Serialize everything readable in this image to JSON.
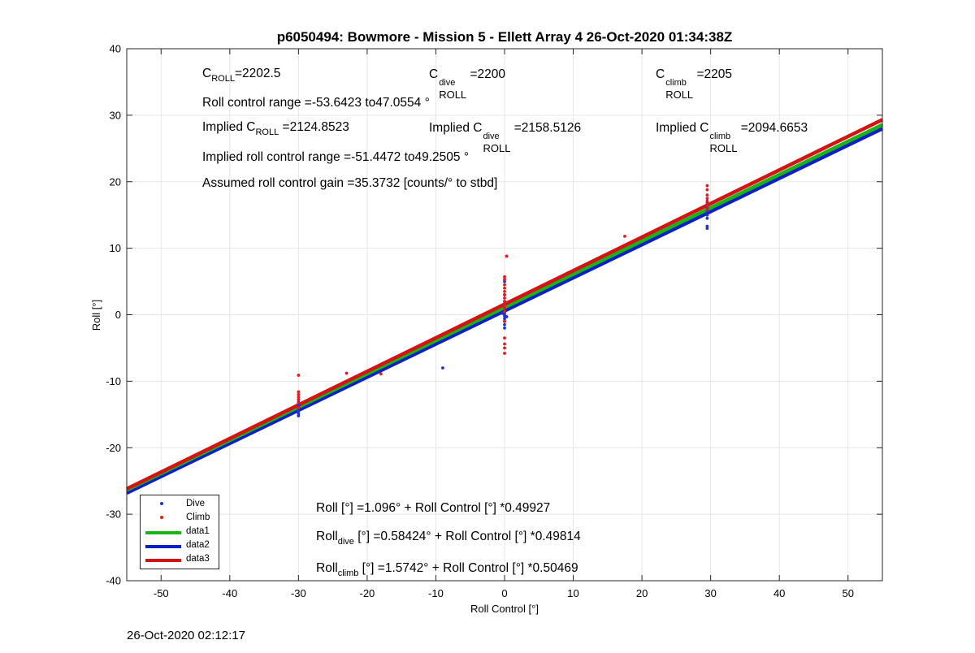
{
  "colors": {
    "dive": "#1f33d4",
    "climb": "#e41a1c",
    "data1": "#18b418",
    "data2": "#0a1fc8",
    "data3": "#d21414",
    "grid": "#e6e6e6"
  },
  "annotations": {
    "c_roll_base": "C",
    "c_roll_sub": "ROLL",
    "c_roll_val": "=2202.5",
    "c_dive_base": "C",
    "c_dive_sup": "dive",
    "c_dive_sub": "ROLL",
    "c_dive_val": " =2200",
    "c_climb_base": "C",
    "c_climb_sup": "climb",
    "c_climb_sub": "ROLL",
    "c_climb_val": " =2205",
    "roll_range": "Roll control range =-53.6423 to47.0554 °",
    "implied_c_prefix": "Implied C",
    "implied_c_sub": "ROLL",
    "implied_c_val": " =2124.8523",
    "implied_dive_prefix": "Implied C",
    "implied_dive_sup": "dive",
    "implied_dive_sub": "ROLL",
    "implied_dive_val": " =2158.5126",
    "implied_climb_prefix": "Implied C",
    "implied_climb_sup": "climb",
    "implied_climb_sub": "ROLL",
    "implied_climb_val": " =2094.6653",
    "implied_range": "Implied roll control range =-51.4472 to49.2505 °",
    "gain": "Assumed roll control gain =35.3732 [counts/° to stbd]",
    "fit_all": "Roll [°] =1.096° + Roll Control [°] *0.49927",
    "fit_dive_base": "Roll",
    "fit_dive_sub": "dive",
    "fit_dive_rest": " [°] =0.58424° + Roll Control [°] *0.49814",
    "fit_climb_base": "Roll",
    "fit_climb_sub": "climb",
    "fit_climb_rest": " [°] =1.5742° + Roll Control [°] *0.50469"
  },
  "footer_timestamp": "26-Oct-2020 02:12:17",
  "chart_data": {
    "type": "scatter",
    "title": "p6050494: Bowmore - Mission 5 - Ellett Array 4 26-Oct-2020 01:34:38Z",
    "xlabel": "Roll Control [°]",
    "ylabel": "Roll [°]",
    "xlim": [
      -55,
      55
    ],
    "ylim": [
      -40,
      40
    ],
    "xticks": [
      -50,
      -40,
      -30,
      -20,
      -10,
      0,
      10,
      20,
      30,
      40,
      50
    ],
    "yticks": [
      -40,
      -30,
      -20,
      -10,
      0,
      10,
      20,
      30,
      40
    ],
    "grid": true,
    "legend_position": "bottom-left",
    "series": [
      {
        "name": "Dive",
        "kind": "points",
        "points": [
          [
            -30,
            -15.2
          ],
          [
            -30,
            -14.9
          ],
          [
            -30,
            -14.5
          ],
          [
            -30,
            -14.0
          ],
          [
            -30,
            -13.6
          ],
          [
            -30,
            -13.2
          ],
          [
            -30,
            -12.8
          ],
          [
            -9,
            -8.0
          ],
          [
            0,
            -2.0
          ],
          [
            0,
            -1.5
          ],
          [
            0,
            -1.0
          ],
          [
            0,
            -0.6
          ],
          [
            0,
            -0.2
          ],
          [
            0,
            0.0
          ],
          [
            0,
            0.3
          ],
          [
            0,
            0.6
          ],
          [
            0,
            1.0
          ],
          [
            0,
            1.5
          ],
          [
            0,
            2.0
          ],
          [
            0,
            3.0
          ],
          [
            0,
            5.0
          ],
          [
            -0.3,
            0.2
          ],
          [
            0.3,
            -0.3
          ],
          [
            29.5,
            13.0
          ],
          [
            29.5,
            13.3
          ],
          [
            29.5,
            14.5
          ],
          [
            29.5,
            15.0
          ],
          [
            29.5,
            15.6
          ],
          [
            29.5,
            16.1
          ],
          [
            29.5,
            16.6
          ],
          [
            29.5,
            17.0
          ]
        ]
      },
      {
        "name": "Climb",
        "kind": "points",
        "points": [
          [
            -30,
            -9.1
          ],
          [
            -30,
            -11.6
          ],
          [
            -30,
            -12.0
          ],
          [
            -30,
            -12.4
          ],
          [
            -30,
            -12.8
          ],
          [
            -30,
            -13.3
          ],
          [
            -30,
            -14.0
          ],
          [
            -23,
            -8.8
          ],
          [
            -18,
            -8.9
          ],
          [
            0,
            -5.8
          ],
          [
            0,
            -5.0
          ],
          [
            0,
            -4.4
          ],
          [
            0,
            -3.5
          ],
          [
            0,
            -1.0
          ],
          [
            0,
            0.5
          ],
          [
            0,
            1.0
          ],
          [
            0,
            1.5
          ],
          [
            0,
            2.0
          ],
          [
            0,
            2.5
          ],
          [
            0,
            3.0
          ],
          [
            0,
            3.5
          ],
          [
            0,
            4.0
          ],
          [
            0,
            4.5
          ],
          [
            0,
            5.3
          ],
          [
            0,
            5.7
          ],
          [
            0.3,
            8.8
          ],
          [
            17.5,
            11.8
          ],
          [
            29.5,
            15.8
          ],
          [
            29.5,
            16.3
          ],
          [
            29.5,
            16.7
          ],
          [
            29.5,
            17.1
          ],
          [
            29.5,
            17.5
          ],
          [
            29.5,
            18.0
          ],
          [
            29.5,
            18.8
          ],
          [
            29.5,
            19.4
          ]
        ]
      },
      {
        "name": "data1",
        "kind": "line",
        "intercept": 1.096,
        "slope": 0.49927
      },
      {
        "name": "data2",
        "kind": "line",
        "intercept": 0.58424,
        "slope": 0.49814
      },
      {
        "name": "data3",
        "kind": "line",
        "intercept": 1.5742,
        "slope": 0.50469
      }
    ]
  }
}
